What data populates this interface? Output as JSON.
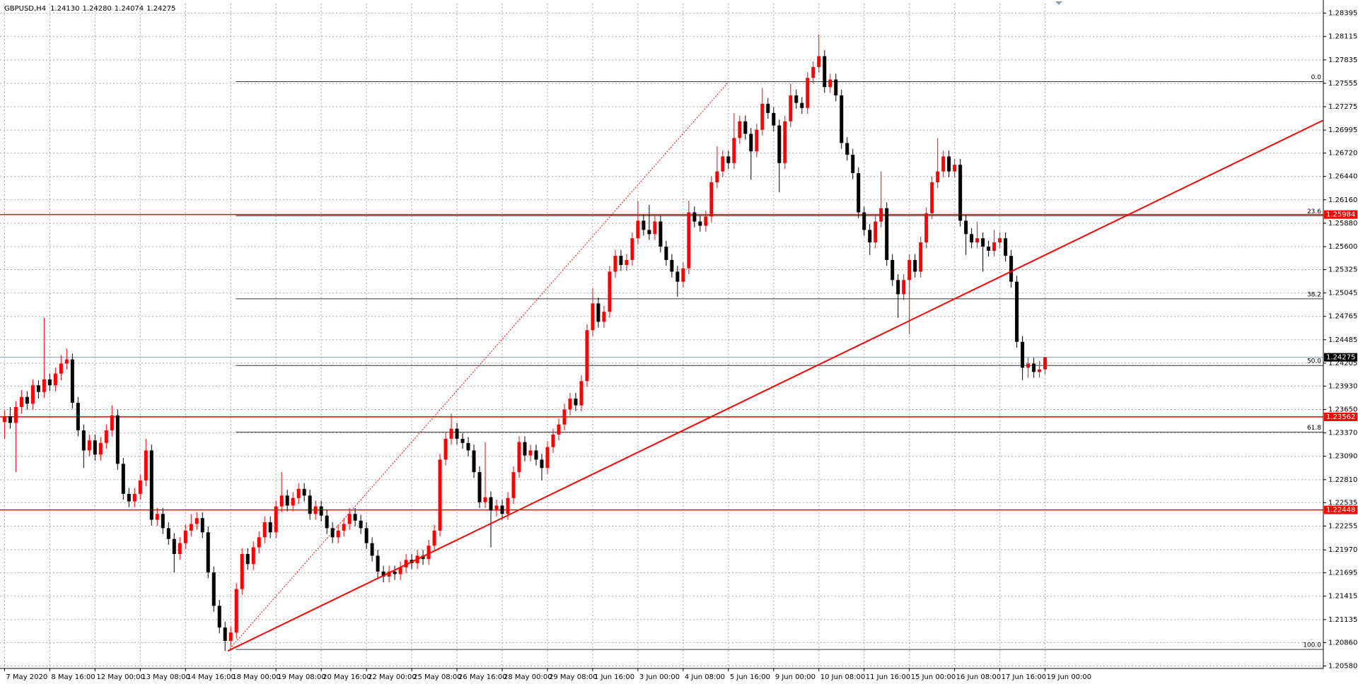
{
  "chart_data": {
    "type": "candlestick",
    "symbol": "GBPUSD,H4",
    "header_values": [
      "1.24130",
      "1.24280",
      "1.24074",
      "1.24275"
    ],
    "up_color": "#ff0000",
    "down_color": "#000000",
    "grid": true,
    "open": [
      1.235,
      1.2357,
      1.2349,
      1.2368,
      1.238,
      1.2372,
      1.2394,
      1.2386,
      1.2401,
      1.2394,
      1.2408,
      1.242,
      1.2425,
      1.2373,
      1.234,
      1.2316,
      1.2328,
      1.2311,
      1.2325,
      1.234,
      1.2358,
      1.23,
      1.2264,
      1.2255,
      1.2264,
      1.228,
      1.2316,
      1.2233,
      1.224,
      1.2223,
      1.221,
      1.2192,
      1.2205,
      1.222,
      1.2228,
      1.2235,
      1.2218,
      1.217,
      1.213,
      1.2104,
      1.2088,
      1.2098,
      1.215,
      1.2192,
      1.218,
      1.22,
      1.2212,
      1.223,
      1.2218,
      1.2249,
      1.2262,
      1.225,
      1.2259,
      1.227,
      1.2262,
      1.224,
      1.2249,
      1.2238,
      1.2223,
      1.2212,
      1.222,
      1.2228,
      1.224,
      1.2232,
      1.2223,
      1.2205,
      1.219,
      1.2171,
      1.2165,
      1.2171,
      1.2168,
      1.2176,
      1.2185,
      1.2181,
      1.219,
      1.2186,
      1.2202,
      1.222,
      1.2305,
      1.233,
      1.2342,
      1.233,
      1.2325,
      1.2316,
      1.229,
      1.2254,
      1.226,
      1.2244,
      1.225,
      1.224,
      1.2259,
      1.229,
      1.2326,
      1.231,
      1.2316,
      1.2305,
      1.2295,
      1.232,
      1.2335,
      1.2347,
      1.2365,
      1.2378,
      1.237,
      1.2399,
      1.246,
      1.2492,
      1.247,
      1.2482,
      1.253,
      1.2549,
      1.2538,
      1.2544,
      1.257,
      1.2591,
      1.258,
      1.2575,
      1.259,
      1.256,
      1.2544,
      1.253,
      1.2518,
      1.2534,
      1.2601,
      1.259,
      1.2585,
      1.2596,
      1.2637,
      1.265,
      1.2668,
      1.266,
      1.269,
      1.271,
      1.2695,
      1.2674,
      1.27,
      1.2731,
      1.272,
      1.2705,
      1.266,
      1.271,
      1.2741,
      1.2732,
      1.2726,
      1.2762,
      1.2775,
      1.2788,
      1.2751,
      1.276,
      1.2741,
      1.2684,
      1.267,
      1.2648,
      1.2601,
      1.258,
      1.2565,
      1.259,
      1.2606,
      1.2544,
      1.252,
      1.2503,
      1.252,
      1.2544,
      1.253,
      1.2565,
      1.26,
      1.2637,
      1.265,
      1.2668,
      1.265,
      1.2658,
      1.2591,
      1.2575,
      1.2565,
      1.257,
      1.256,
      1.2555,
      1.2565,
      1.257,
      1.2549,
      1.2518,
      1.2446,
      1.2415,
      1.242,
      1.241,
      1.2413
    ],
    "high": [
      1.2364,
      1.2368,
      1.2375,
      1.2388,
      1.2387,
      1.2401,
      1.24,
      1.2475,
      1.2408,
      1.2415,
      1.243,
      1.2438,
      1.2432,
      1.238,
      1.2347,
      1.2335,
      1.2335,
      1.2332,
      1.2347,
      1.237,
      1.2365,
      1.2307,
      1.2271,
      1.2271,
      1.2287,
      1.233,
      1.2323,
      1.2247,
      1.2247,
      1.223,
      1.2217,
      1.2212,
      1.2227,
      1.224,
      1.2242,
      1.2242,
      1.2225,
      1.2177,
      1.2137,
      1.2111,
      1.2105,
      1.2157,
      1.2199,
      1.2199,
      1.2207,
      1.2219,
      1.2237,
      1.2237,
      1.2256,
      1.229,
      1.2269,
      1.2266,
      1.2277,
      1.2277,
      1.2269,
      1.2256,
      1.2256,
      1.2245,
      1.223,
      1.2227,
      1.2235,
      1.2247,
      1.2247,
      1.2239,
      1.223,
      1.2212,
      1.2197,
      1.2178,
      1.2178,
      1.2178,
      1.2183,
      1.2192,
      1.2192,
      1.2197,
      1.2197,
      1.2209,
      1.2227,
      1.2312,
      1.2337,
      1.236,
      1.2349,
      1.2337,
      1.2332,
      1.2323,
      1.2297,
      1.2326,
      1.2267,
      1.2257,
      1.2257,
      1.2266,
      1.2297,
      1.2333,
      1.2333,
      1.2323,
      1.2323,
      1.2312,
      1.2327,
      1.2342,
      1.2354,
      1.2372,
      1.2385,
      1.2385,
      1.2406,
      1.2467,
      1.251,
      1.2499,
      1.2489,
      1.2537,
      1.2556,
      1.2556,
      1.2551,
      1.2577,
      1.2615,
      1.2598,
      1.261,
      1.2597,
      1.2597,
      1.2567,
      1.2551,
      1.2537,
      1.2541,
      1.2615,
      1.2608,
      1.2597,
      1.2603,
      1.2644,
      1.268,
      1.2675,
      1.2675,
      1.272,
      1.2717,
      1.2717,
      1.2702,
      1.2707,
      1.275,
      1.2738,
      1.2727,
      1.2712,
      1.2717,
      1.2755,
      1.2748,
      1.2739,
      1.2769,
      1.2782,
      1.2814,
      1.2795,
      1.2767,
      1.2767,
      1.2748,
      1.2691,
      1.2677,
      1.2655,
      1.2608,
      1.2587,
      1.2597,
      1.265,
      1.2613,
      1.2551,
      1.2527,
      1.2527,
      1.2551,
      1.2551,
      1.2572,
      1.2607,
      1.2644,
      1.269,
      1.2675,
      1.2675,
      1.2665,
      1.2665,
      1.2598,
      1.2582,
      1.259,
      1.2577,
      1.2567,
      1.258,
      1.2577,
      1.2577,
      1.2556,
      1.2525,
      1.2453,
      1.2427,
      1.2427,
      1.2423,
      1.2428
    ],
    "low": [
      1.233,
      1.2342,
      1.229,
      1.236,
      1.2365,
      1.2365,
      1.2378,
      1.2379,
      1.2387,
      1.2387,
      1.24,
      1.2413,
      1.2366,
      1.2333,
      1.2295,
      1.2309,
      1.2304,
      1.2304,
      1.2318,
      1.2333,
      1.2293,
      1.2257,
      1.2248,
      1.2248,
      1.2257,
      1.2273,
      1.2226,
      1.2226,
      1.2216,
      1.2203,
      1.217,
      1.2185,
      1.2198,
      1.2213,
      1.2221,
      1.2211,
      1.2163,
      1.2123,
      1.2097,
      1.2076,
      1.2081,
      1.2091,
      1.2143,
      1.2173,
      1.2173,
      1.2193,
      1.2205,
      1.2211,
      1.2211,
      1.2242,
      1.2243,
      1.2243,
      1.2252,
      1.2255,
      1.2233,
      1.2233,
      1.2231,
      1.2216,
      1.2205,
      1.2205,
      1.2213,
      1.2221,
      1.2225,
      1.2216,
      1.2198,
      1.2183,
      1.2164,
      1.2158,
      1.2158,
      1.2161,
      1.2161,
      1.2169,
      1.2174,
      1.2174,
      1.2179,
      1.2179,
      1.2195,
      1.2213,
      1.2298,
      1.2323,
      1.2323,
      1.2318,
      1.2309,
      1.2283,
      1.2247,
      1.2247,
      1.22,
      1.2237,
      1.2233,
      1.2233,
      1.2252,
      1.2283,
      1.2303,
      1.2303,
      1.2298,
      1.228,
      1.2288,
      1.2313,
      1.2328,
      1.234,
      1.2358,
      1.2363,
      1.2363,
      1.2392,
      1.2453,
      1.2463,
      1.2463,
      1.2475,
      1.2523,
      1.2531,
      1.2531,
      1.2537,
      1.2563,
      1.2573,
      1.2568,
      1.2568,
      1.2553,
      1.2537,
      1.2523,
      1.25,
      1.2511,
      1.2527,
      1.2583,
      1.2578,
      1.2578,
      1.2589,
      1.263,
      1.2643,
      1.2653,
      1.2653,
      1.2683,
      1.2688,
      1.264,
      1.2667,
      1.2693,
      1.2713,
      1.2698,
      1.2625,
      1.2653,
      1.2703,
      1.2725,
      1.2719,
      1.2719,
      1.2755,
      1.2768,
      1.2744,
      1.2744,
      1.2734,
      1.2677,
      1.2663,
      1.2641,
      1.2594,
      1.2573,
      1.255,
      1.2558,
      1.2583,
      1.2537,
      1.2513,
      1.2475,
      1.2496,
      1.2455,
      1.2523,
      1.2523,
      1.2558,
      1.2593,
      1.263,
      1.2643,
      1.2643,
      1.2643,
      1.2584,
      1.255,
      1.2558,
      1.2558,
      1.253,
      1.2548,
      1.2548,
      1.2558,
      1.2542,
      1.2511,
      1.2439,
      1.24,
      1.2403,
      1.2403,
      1.2403,
      1.24074
    ],
    "close": [
      1.2357,
      1.2349,
      1.2368,
      1.238,
      1.2372,
      1.2394,
      1.2386,
      1.2401,
      1.2394,
      1.2408,
      1.242,
      1.2425,
      1.2373,
      1.234,
      1.2316,
      1.2328,
      1.2311,
      1.2325,
      1.234,
      1.2358,
      1.23,
      1.2264,
      1.2255,
      1.2264,
      1.228,
      1.2316,
      1.2233,
      1.224,
      1.2223,
      1.221,
      1.2192,
      1.2205,
      1.222,
      1.2228,
      1.2235,
      1.2218,
      1.217,
      1.213,
      1.2104,
      1.2088,
      1.2098,
      1.215,
      1.2192,
      1.218,
      1.22,
      1.2212,
      1.223,
      1.2218,
      1.2249,
      1.2262,
      1.225,
      1.2259,
      1.227,
      1.2262,
      1.224,
      1.2249,
      1.2238,
      1.2223,
      1.2212,
      1.222,
      1.2228,
      1.224,
      1.2232,
      1.2223,
      1.2205,
      1.219,
      1.2171,
      1.2165,
      1.2171,
      1.2168,
      1.2176,
      1.2185,
      1.2181,
      1.219,
      1.2186,
      1.2202,
      1.222,
      1.2305,
      1.233,
      1.2342,
      1.233,
      1.2325,
      1.2316,
      1.229,
      1.2254,
      1.226,
      1.2244,
      1.225,
      1.224,
      1.2259,
      1.229,
      1.2326,
      1.231,
      1.2316,
      1.2305,
      1.2295,
      1.232,
      1.2335,
      1.2347,
      1.2365,
      1.2378,
      1.237,
      1.2399,
      1.246,
      1.2492,
      1.247,
      1.2482,
      1.253,
      1.2549,
      1.2538,
      1.2544,
      1.257,
      1.2591,
      1.258,
      1.2575,
      1.259,
      1.256,
      1.2544,
      1.253,
      1.2518,
      1.2534,
      1.2601,
      1.259,
      1.2585,
      1.2596,
      1.2637,
      1.265,
      1.2668,
      1.266,
      1.269,
      1.271,
      1.2695,
      1.2674,
      1.27,
      1.2731,
      1.272,
      1.2705,
      1.266,
      1.271,
      1.2741,
      1.2732,
      1.2726,
      1.2762,
      1.2775,
      1.2788,
      1.2751,
      1.276,
      1.2741,
      1.2684,
      1.267,
      1.2648,
      1.2601,
      1.258,
      1.2565,
      1.259,
      1.2606,
      1.2544,
      1.252,
      1.2503,
      1.252,
      1.2544,
      1.253,
      1.2565,
      1.26,
      1.2637,
      1.265,
      1.2668,
      1.265,
      1.2658,
      1.2591,
      1.2575,
      1.2565,
      1.257,
      1.256,
      1.2555,
      1.2565,
      1.257,
      1.2549,
      1.2518,
      1.2446,
      1.2415,
      1.242,
      1.241,
      1.2413,
      1.24275
    ],
    "xlim": [
      -0.8,
      233.2
    ],
    "xticks": [
      {
        "value": 0,
        "label": "7 May 2020"
      },
      {
        "value": 8,
        "label": "8 May 16:00"
      },
      {
        "value": 16,
        "label": "12 May 00:00"
      },
      {
        "value": 24,
        "label": "13 May 08:00"
      },
      {
        "value": 32,
        "label": "14 May 16:00"
      },
      {
        "value": 40,
        "label": "18 May 00:00"
      },
      {
        "value": 48,
        "label": "19 May 08:00"
      },
      {
        "value": 56,
        "label": "20 May 16:00"
      },
      {
        "value": 64,
        "label": "22 May 00:00"
      },
      {
        "value": 72,
        "label": "25 May 08:00"
      },
      {
        "value": 80,
        "label": "26 May 16:00"
      },
      {
        "value": 88,
        "label": "28 May 00:00"
      },
      {
        "value": 96,
        "label": "29 May 08:00"
      },
      {
        "value": 104,
        "label": "1 Jun 16:00"
      },
      {
        "value": 112,
        "label": "3 Jun 00:00"
      },
      {
        "value": 120,
        "label": "4 Jun 08:00"
      },
      {
        "value": 128,
        "label": "5 Jun 16:00"
      },
      {
        "value": 136,
        "label": "9 Jun 00:00"
      },
      {
        "value": 144,
        "label": "10 Jun 08:00"
      },
      {
        "value": 152,
        "label": "11 Jun 16:00"
      },
      {
        "value": 160,
        "label": "15 Jun 00:00"
      },
      {
        "value": 168,
        "label": "16 Jun 08:00"
      },
      {
        "value": 176,
        "label": "17 Jun 16:00"
      },
      {
        "value": 184,
        "label": "19 Jun 00:00"
      }
    ],
    "ylim": [
      1.2055,
      1.2851
    ],
    "yticks": [
      {
        "value": 1.2058,
        "label": "1.20580"
      },
      {
        "value": 1.2086,
        "label": "1.20860"
      },
      1.21135,
      1.21415,
      1.21695,
      {
        "value": 1.2197,
        "label": "1.21970"
      },
      1.22255,
      1.22535,
      {
        "value": 1.2281,
        "label": "1.22810"
      },
      {
        "value": 1.2309,
        "label": "1.23090"
      },
      {
        "value": 1.2337,
        "label": "1.23370"
      },
      {
        "value": 1.2365,
        "label": "1.23650"
      },
      {
        "value": 1.2393,
        "label": "1.23930"
      },
      1.24205,
      1.24485,
      1.24765,
      1.25045,
      1.25325,
      {
        "value": 1.256,
        "label": "1.25600"
      },
      {
        "value": 1.2588,
        "label": "1.25880"
      },
      {
        "value": 1.2616,
        "label": "1.26160"
      },
      {
        "value": 1.2644,
        "label": "1.26440"
      },
      {
        "value": 1.2672,
        "label": "1.26720"
      },
      1.26995,
      1.27275,
      1.27555,
      1.27835,
      1.28115,
      1.28395
    ],
    "levels": [
      {
        "value": 1.25984,
        "color": "#ff0000"
      },
      {
        "value": 1.23562,
        "color": "#ff0000"
      },
      {
        "value": 1.22448,
        "color": "#ff0000"
      }
    ],
    "last_price": {
      "value": 1.24275,
      "color": "#8e9bb4"
    },
    "fibonacci": {
      "start": 40.9,
      "color": "#333333",
      "levels": [
        {
          "label": "0.0",
          "value": 1.27575
        },
        {
          "label": "23.6",
          "value": 1.2597
        },
        {
          "label": "38.2",
          "value": 1.24975
        },
        {
          "label": "50.0",
          "value": 1.24177
        },
        {
          "label": "61.8",
          "value": 1.23378
        },
        {
          "label": "100.0",
          "value": 1.20777
        }
      ]
    },
    "trendline": {
      "x": [
        39.5,
        233.1
      ],
      "y": [
        1.2076,
        1.2711
      ],
      "color": "#ff0000"
    },
    "fib_guide": {
      "x": [
        39.5,
        128
      ],
      "y": [
        1.2076,
        1.2757
      ],
      "color": "#ff0000"
    }
  }
}
